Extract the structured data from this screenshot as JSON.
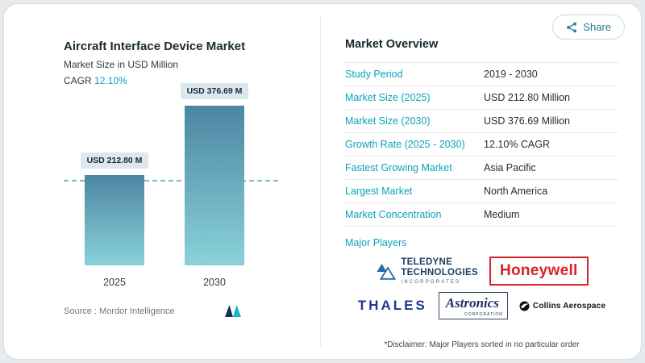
{
  "colors": {
    "accent": "#0ba3bb",
    "bar_gradient_top": "#4c86a2",
    "bar_gradient_bottom": "#8ad2da",
    "honeywell_red": "#d8232a",
    "thales_blue": "#1e3796",
    "card_background": "#ffffff",
    "page_background": "#e7ebee"
  },
  "share_button": {
    "label": "Share"
  },
  "chart_panel": {
    "title": "Aircraft Interface Device Market",
    "subtitle": "Market Size in USD Million",
    "cagr_label": "CAGR",
    "cagr_value": "12.10%",
    "source_label": "Source :",
    "source_value": "Mordor Intelligence"
  },
  "chart_data": {
    "type": "bar",
    "title": "Aircraft Interface Device Market",
    "subtitle": "Market Size in USD Million",
    "categories": [
      "2025",
      "2030"
    ],
    "values": [
      212.8,
      376.69
    ],
    "bar_labels": [
      "USD 212.80 M",
      "USD 376.69 M"
    ],
    "unit": "USD Million",
    "cagr": "12.10%",
    "reference_line_value": 212.8,
    "ylim": [
      0,
      400
    ],
    "grid": false,
    "legend": "none"
  },
  "overview": {
    "title": "Market Overview",
    "rows": [
      {
        "label": "Study Period",
        "value": "2019 - 2030"
      },
      {
        "label": "Market Size (2025)",
        "value": "USD 212.80 Million"
      },
      {
        "label": "Market Size (2030)",
        "value": "USD 376.69 Million"
      },
      {
        "label": "Growth Rate (2025 - 2030)",
        "value": "12.10% CAGR"
      },
      {
        "label": "Fastest Growing Market",
        "value": "Asia Pacific"
      },
      {
        "label": "Largest Market",
        "value": "North America"
      },
      {
        "label": "Market Concentration",
        "value": "Medium"
      }
    ],
    "major_players_label": "Major Players",
    "players": {
      "teledyne": {
        "line1": "TELEDYNE",
        "line2": "TECHNOLOGIES",
        "line3": "INCORPORATED"
      },
      "honeywell": {
        "name": "Honeywell"
      },
      "thales": {
        "name": "THALES"
      },
      "astronics": {
        "name": "Astronics",
        "sub": "CORPORATION"
      },
      "collins": {
        "name": "Collins Aerospace"
      }
    },
    "disclaimer": "*Disclaimer: Major Players sorted in no particular order"
  }
}
